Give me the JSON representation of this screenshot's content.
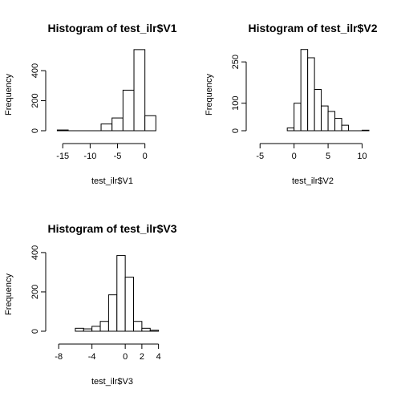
{
  "chart_data": [
    {
      "type": "bar",
      "title": "Histogram of test_ilr$V1",
      "xlabel": "test_ilr$V1",
      "ylabel": "Frequency",
      "xlim": [
        -16.5,
        4
      ],
      "ylim": [
        0,
        550
      ],
      "xticks": [
        -15,
        -10,
        -5,
        0
      ],
      "yticks": [
        0,
        200,
        400
      ],
      "bins": [
        {
          "x0": -16,
          "x1": -14,
          "count": 5
        },
        {
          "x0": -14,
          "x1": -12,
          "count": 0
        },
        {
          "x0": -12,
          "x1": -10,
          "count": 0
        },
        {
          "x0": -10,
          "x1": -8,
          "count": 0
        },
        {
          "x0": -8,
          "x1": -6,
          "count": 45
        },
        {
          "x0": -6,
          "x1": -4,
          "count": 85
        },
        {
          "x0": -4,
          "x1": -2,
          "count": 270
        },
        {
          "x0": -2,
          "x1": 0,
          "count": 540
        },
        {
          "x0": 0,
          "x1": 2,
          "count": 100
        }
      ]
    },
    {
      "type": "bar",
      "title": "Histogram of test_ilr$V2",
      "xlabel": "test_ilr$V2",
      "ylabel": "Frequency",
      "xlim": [
        -5.5,
        11
      ],
      "ylim": [
        0,
        300
      ],
      "xticks": [
        -5,
        0,
        5,
        10
      ],
      "yticks": [
        0,
        100,
        250
      ],
      "bins": [
        {
          "x0": -1,
          "x1": 0,
          "count": 10
        },
        {
          "x0": 0,
          "x1": 1,
          "count": 100
        },
        {
          "x0": 1,
          "x1": 2,
          "count": 295
        },
        {
          "x0": 2,
          "x1": 3,
          "count": 265
        },
        {
          "x0": 3,
          "x1": 4,
          "count": 150
        },
        {
          "x0": 4,
          "x1": 5,
          "count": 90
        },
        {
          "x0": 5,
          "x1": 6,
          "count": 70
        },
        {
          "x0": 6,
          "x1": 7,
          "count": 45
        },
        {
          "x0": 7,
          "x1": 8,
          "count": 20
        },
        {
          "x0": 8,
          "x1": 9,
          "count": 0
        },
        {
          "x0": 9,
          "x1": 10,
          "count": 0
        },
        {
          "x0": 10,
          "x1": 11,
          "count": 2
        }
      ]
    },
    {
      "type": "bar",
      "title": "Histogram of test_ilr$V3",
      "xlabel": "test_ilr$V3",
      "ylabel": "Frequency",
      "xlim": [
        -8.5,
        5
      ],
      "ylim": [
        0,
        420
      ],
      "xticks": [
        -8,
        -4,
        0,
        2,
        4
      ],
      "yticks": [
        0,
        200,
        400
      ],
      "bins": [
        {
          "x0": -6,
          "x1": -5,
          "count": 15
        },
        {
          "x0": -5,
          "x1": -4,
          "count": 12
        },
        {
          "x0": -4,
          "x1": -3,
          "count": 25
        },
        {
          "x0": -3,
          "x1": -2,
          "count": 50
        },
        {
          "x0": -2,
          "x1": -1,
          "count": 185
        },
        {
          "x0": -1,
          "x1": 0,
          "count": 385
        },
        {
          "x0": 0,
          "x1": 1,
          "count": 275
        },
        {
          "x0": 1,
          "x1": 2,
          "count": 50
        },
        {
          "x0": 2,
          "x1": 3,
          "count": 15
        },
        {
          "x0": 3,
          "x1": 4,
          "count": 5
        }
      ]
    }
  ]
}
